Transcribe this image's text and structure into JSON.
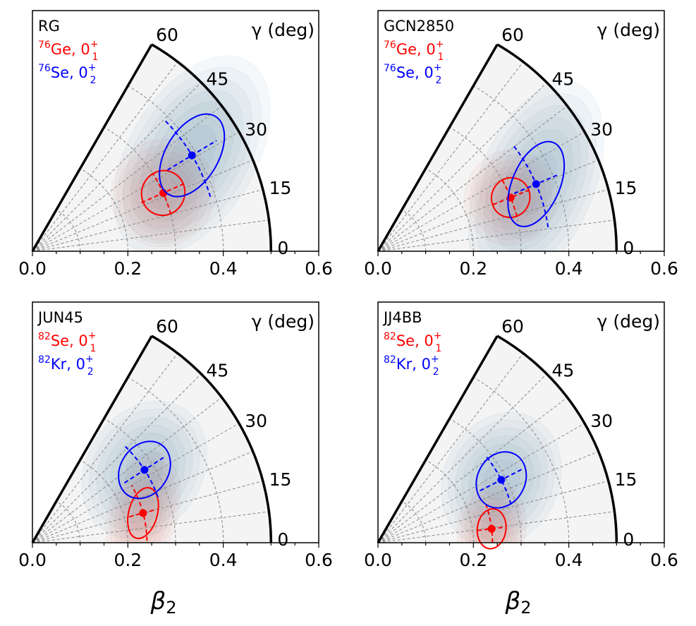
{
  "figure": {
    "xlabel": "β",
    "xlabel_sub": "2",
    "angle_axis_label": "γ (deg)",
    "x_ticks": [
      "0.0",
      "0.2",
      "0.4",
      "0.6"
    ],
    "angle_ticks": [
      "0",
      "15",
      "30",
      "45",
      "60"
    ]
  },
  "chart_data": [
    {
      "type": "polar-contour",
      "title": "RG",
      "xlabel": "β2",
      "xlim": [
        0.0,
        0.6
      ],
      "r_max": 0.5,
      "gamma_range_deg": [
        0,
        60
      ],
      "legend": [
        {
          "mass": "76",
          "element": "Ge",
          "state": "0",
          "sub": "1",
          "sup": "+",
          "color": "#ff0000"
        },
        {
          "mass": "76",
          "element": "Se",
          "state": "0",
          "sub": "2",
          "sup": "+",
          "color": "#0000ff"
        }
      ],
      "series": [
        {
          "name": "76Ge 0_1+",
          "color": "#ff0000",
          "beta_mean": 0.3,
          "gamma_mean_deg": 24,
          "sigma_beta": 0.045,
          "sigma_gamma_deg": 9,
          "beta_range": [
            0.25,
            0.35
          ],
          "gamma_range_deg": [
            15,
            33
          ]
        },
        {
          "name": "76Se 0_2+",
          "color": "#0000ff",
          "beta_mean": 0.39,
          "gamma_mean_deg": 31,
          "sigma_beta": 0.055,
          "sigma_gamma_deg": 14,
          "beta_range": [
            0.33,
            0.45
          ],
          "gamma_range_deg": [
            17,
            45
          ]
        }
      ]
    },
    {
      "type": "polar-contour",
      "title": "GCN2850",
      "xlabel": "β2",
      "xlim": [
        0.0,
        0.6
      ],
      "r_max": 0.5,
      "gamma_range_deg": [
        0,
        60
      ],
      "legend": [
        {
          "mass": "76",
          "element": "Ge",
          "state": "0",
          "sub": "1",
          "sup": "+",
          "color": "#ff0000"
        },
        {
          "mass": "76",
          "element": "Se",
          "state": "0",
          "sub": "2",
          "sup": "+",
          "color": "#0000ff"
        }
      ],
      "series": [
        {
          "name": "76Ge 0_1+",
          "color": "#ff0000",
          "beta_mean": 0.3,
          "gamma_mean_deg": 22,
          "sigma_beta": 0.04,
          "sigma_gamma_deg": 8,
          "beta_range": [
            0.26,
            0.34
          ],
          "gamma_range_deg": [
            14,
            30
          ]
        },
        {
          "name": "76Se 0_2+",
          "color": "#0000ff",
          "beta_mean": 0.36,
          "gamma_mean_deg": 23,
          "sigma_beta": 0.05,
          "sigma_gamma_deg": 15,
          "beta_range": [
            0.31,
            0.41
          ],
          "gamma_range_deg": [
            8,
            38
          ]
        }
      ]
    },
    {
      "type": "polar-contour",
      "title": "JUN45",
      "xlabel": "β2",
      "xlim": [
        0.0,
        0.6
      ],
      "r_max": 0.5,
      "gamma_range_deg": [
        0,
        60
      ],
      "legend": [
        {
          "mass": "82",
          "element": "Se",
          "state": "0",
          "sub": "1",
          "sup": "+",
          "color": "#ff0000"
        },
        {
          "mass": "82",
          "element": "Kr",
          "state": "0",
          "sub": "2",
          "sup": "+",
          "color": "#0000ff"
        }
      ],
      "series": [
        {
          "name": "82Se 0_1+",
          "color": "#ff0000",
          "beta_mean": 0.24,
          "gamma_mean_deg": 15,
          "sigma_beta": 0.03,
          "sigma_gamma_deg": 13,
          "beta_range": [
            0.21,
            0.27
          ],
          "gamma_range_deg": [
            1,
            30
          ]
        },
        {
          "name": "82Kr 0_2+",
          "color": "#0000ff",
          "beta_mean": 0.28,
          "gamma_mean_deg": 33,
          "sigma_beta": 0.05,
          "sigma_gamma_deg": 13,
          "beta_range": [
            0.23,
            0.33
          ],
          "gamma_range_deg": [
            20,
            46
          ]
        }
      ]
    },
    {
      "type": "polar-contour",
      "title": "JJ4BB",
      "xlabel": "β2",
      "xlim": [
        0.0,
        0.6
      ],
      "r_max": 0.5,
      "gamma_range_deg": [
        0,
        60
      ],
      "legend": [
        {
          "mass": "82",
          "element": "Se",
          "state": "0",
          "sub": "1",
          "sup": "+",
          "color": "#ff0000"
        },
        {
          "mass": "82",
          "element": "Kr",
          "state": "0",
          "sub": "2",
          "sup": "+",
          "color": "#0000ff"
        }
      ],
      "series": [
        {
          "name": "82Se 0_1+",
          "color": "#ff0000",
          "beta_mean": 0.24,
          "gamma_mean_deg": 7,
          "sigma_beta": 0.03,
          "sigma_gamma_deg": 10,
          "beta_range": [
            0.21,
            0.27
          ],
          "gamma_range_deg": [
            0,
            19
          ]
        },
        {
          "name": "82Kr 0_2+",
          "color": "#0000ff",
          "beta_mean": 0.29,
          "gamma_mean_deg": 27,
          "sigma_beta": 0.05,
          "sigma_gamma_deg": 12,
          "beta_range": [
            0.24,
            0.34
          ],
          "gamma_range_deg": [
            16,
            39
          ]
        }
      ]
    }
  ]
}
